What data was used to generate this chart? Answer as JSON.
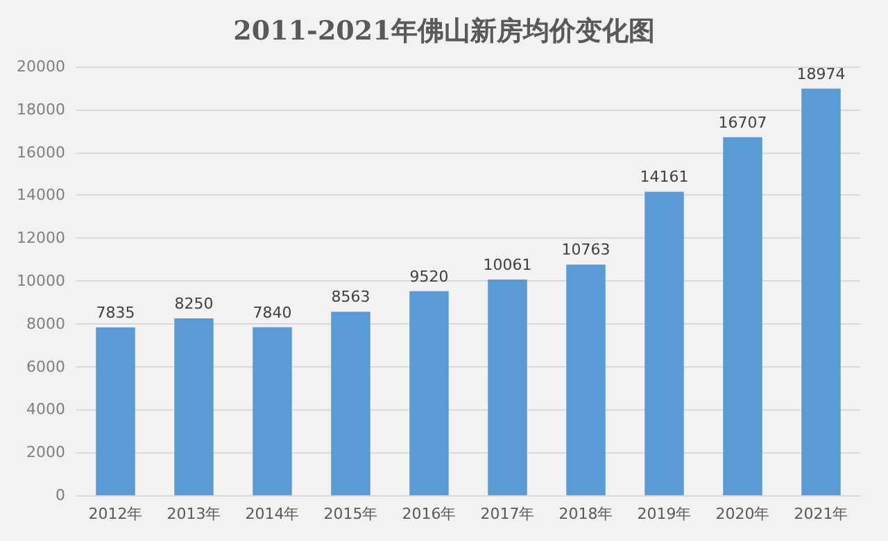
{
  "chart_data": {
    "type": "bar",
    "title": "2011-2021年佛山新房均价变化图",
    "categories": [
      "2012年",
      "2013年",
      "2014年",
      "2015年",
      "2016年",
      "2017年",
      "2018年",
      "2019年",
      "2020年",
      "2021年"
    ],
    "values": [
      7835,
      8250,
      7840,
      8563,
      9520,
      10061,
      10763,
      14161,
      16707,
      18974
    ],
    "color": "#5b9bd5",
    "ylim": [
      0,
      20000
    ],
    "yticks": [
      0,
      2000,
      4000,
      6000,
      8000,
      10000,
      12000,
      14000,
      16000,
      18000,
      20000
    ],
    "grid": "y",
    "data_labels": true
  }
}
